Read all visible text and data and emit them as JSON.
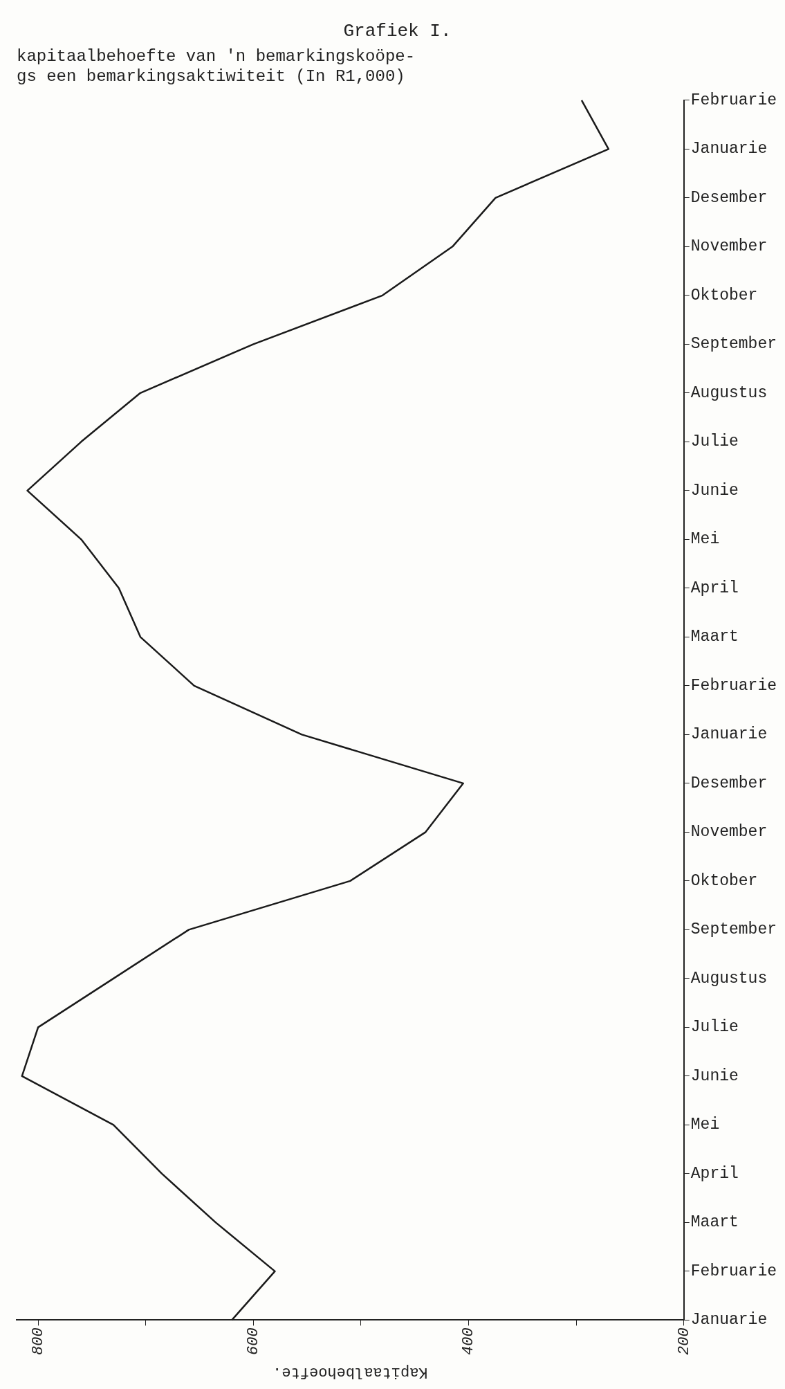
{
  "chart_data": {
    "type": "line",
    "orientation": "horizontal",
    "title": "Grafiek I.",
    "subtitle": [
      "kapitaalbehoefte van 'n bemarkingskoöpe-",
      "gs een bemarkingsaktiwiteit (In R1,000)"
    ],
    "xlabel": "Kapitaalbehoefte.",
    "categories": [
      "Februarie",
      "Januarie",
      "Desember",
      "November",
      "Oktober",
      "September",
      "Augustus",
      "Julie",
      "Junie",
      "Mei",
      "April",
      "Maart",
      "Februarie",
      "Januarie",
      "Desember",
      "November",
      "Oktober",
      "September",
      "Augustus",
      "Julie",
      "Junie",
      "Mei",
      "April",
      "Maart",
      "Februarie",
      "Januarie"
    ],
    "series": [
      {
        "color": "#1a1a1a",
        "values": [
          295,
          270,
          375,
          415,
          480,
          600,
          705,
          760,
          810,
          760,
          725,
          705,
          655,
          555,
          405,
          440,
          510,
          660,
          730,
          800,
          815,
          730,
          685,
          635,
          580,
          620
        ]
      }
    ],
    "xlim": [
      820,
      200
    ],
    "xticks": [
      800,
      {
        "value": 700,
        "label": null
      },
      600,
      {
        "value": 500,
        "label": null
      },
      400,
      {
        "value": 300,
        "label": null
      },
      200
    ],
    "grid": false,
    "legend": false,
    "marker": "none",
    "line_style": "solid"
  }
}
